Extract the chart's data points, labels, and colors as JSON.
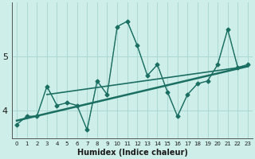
{
  "xlabel": "Humidex (Indice chaleur)",
  "background_color": "#ceeee9",
  "line_color": "#1a6e62",
  "grid_color": "#aad8d2",
  "x_data": [
    0,
    1,
    2,
    3,
    4,
    5,
    6,
    7,
    8,
    9,
    10,
    11,
    12,
    13,
    14,
    15,
    16,
    17,
    18,
    19,
    20,
    21,
    22,
    23
  ],
  "y_main": [
    3.75,
    3.9,
    3.9,
    4.45,
    4.1,
    4.15,
    4.1,
    3.65,
    4.55,
    4.3,
    5.55,
    5.65,
    5.2,
    4.65,
    4.85,
    4.35,
    3.9,
    4.3,
    4.5,
    4.55,
    4.85,
    5.5,
    4.8,
    4.85
  ],
  "trend1_x": [
    0,
    23
  ],
  "trend1_y": [
    3.82,
    4.82
  ],
  "trend2_x": [
    3,
    23
  ],
  "trend2_y": [
    4.3,
    4.82
  ],
  "yticks": [
    4,
    5
  ],
  "ylim": [
    3.5,
    6.0
  ],
  "xlim": [
    -0.5,
    23.5
  ],
  "xlabel_fontsize": 7,
  "ytick_fontsize": 8,
  "xtick_fontsize": 5
}
